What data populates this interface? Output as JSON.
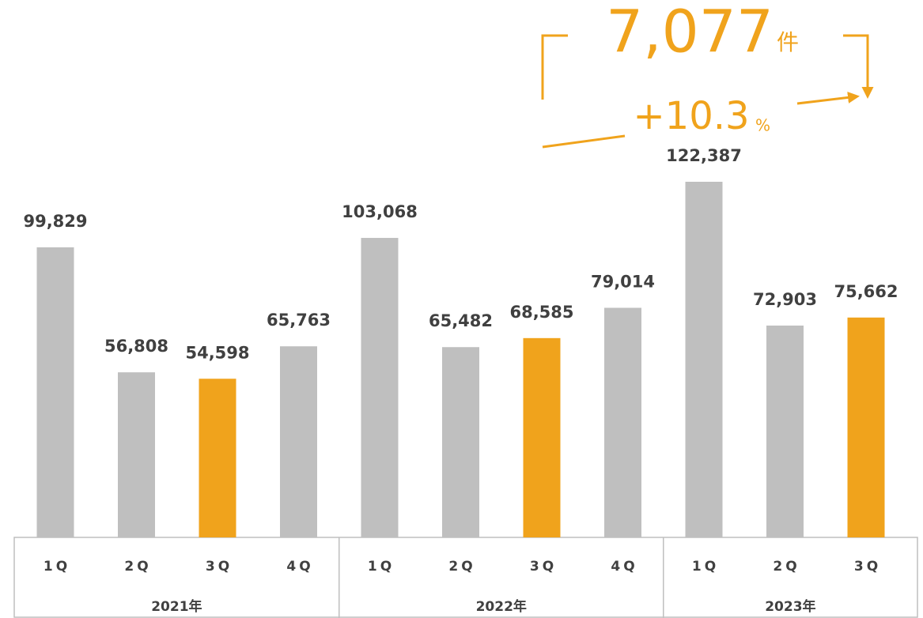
{
  "chart_data": {
    "type": "bar",
    "categories": [
      "1Q",
      "2Q",
      "3Q",
      "4Q",
      "1Q",
      "2Q",
      "3Q",
      "4Q",
      "1Q",
      "2Q",
      "3Q"
    ],
    "groups": [
      "2021年",
      "2022年",
      "2023年"
    ],
    "values": [
      99829,
      56808,
      54598,
      65763,
      103068,
      65482,
      68585,
      79014,
      122387,
      72903,
      75662
    ],
    "value_labels": [
      "99,829",
      "56,808",
      "54,598",
      "65,763",
      "103,068",
      "65,482",
      "68,585",
      "79,014",
      "122,387",
      "72,903",
      "75,662"
    ],
    "colors": [
      "#bfbfbf",
      "#bfbfbf",
      "#f0a31c",
      "#bfbfbf",
      "#bfbfbf",
      "#bfbfbf",
      "#f0a31c",
      "#bfbfbf",
      "#bfbfbf",
      "#bfbfbf",
      "#f0a31c"
    ],
    "annotations": {
      "difference": "7,077",
      "difference_unit": "件",
      "growth": "+10.3",
      "growth_unit": "%"
    }
  }
}
